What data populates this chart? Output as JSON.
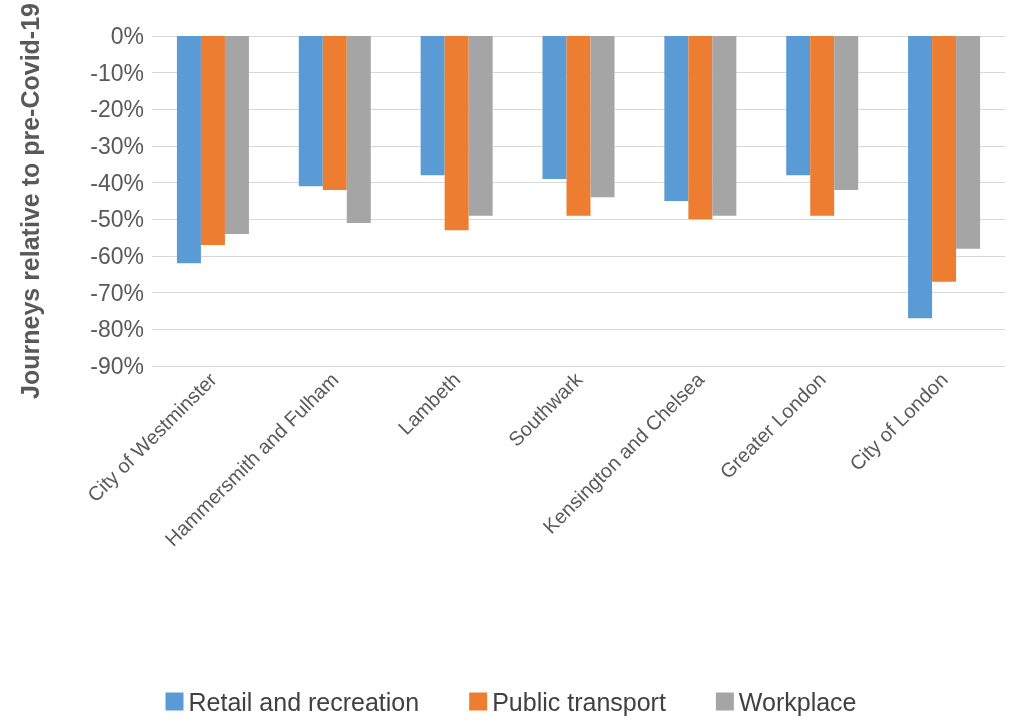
{
  "chart_data": {
    "type": "bar",
    "ylabel": "Journeys relative to pre-Covid-19",
    "categories": [
      "City of Westminster",
      "Hammersmith and Fulham",
      "Lambeth",
      "Southwark",
      "Kensington and Chelsea",
      "Greater London",
      "City of London"
    ],
    "series": [
      {
        "name": "Retail and recreation",
        "color": "#5b9bd5",
        "values": [
          -62,
          -41,
          -38,
          -39,
          -45,
          -38,
          -77
        ]
      },
      {
        "name": "Public transport",
        "color": "#ed7d31",
        "values": [
          -57,
          -42,
          -53,
          -49,
          -50,
          -49,
          -67
        ]
      },
      {
        "name": "Workplace",
        "color": "#a5a5a5",
        "values": [
          -54,
          -51,
          -49,
          -44,
          -49,
          -42,
          -58
        ]
      }
    ],
    "ylim": [
      -90,
      0
    ],
    "yticks": [
      {
        "value": -90,
        "label": "-90%"
      },
      {
        "value": -80,
        "label": "-80%"
      },
      {
        "value": -70,
        "label": "-70%"
      },
      {
        "value": -60,
        "label": "-60%"
      },
      {
        "value": -50,
        "label": "-50%"
      },
      {
        "value": -40,
        "label": "-40%"
      },
      {
        "value": -30,
        "label": "-30%"
      },
      {
        "value": -20,
        "label": "-20%"
      },
      {
        "value": -10,
        "label": "-10%"
      },
      {
        "value": 0,
        "label": "0%"
      }
    ],
    "grid": "y",
    "legend": "bottom"
  }
}
